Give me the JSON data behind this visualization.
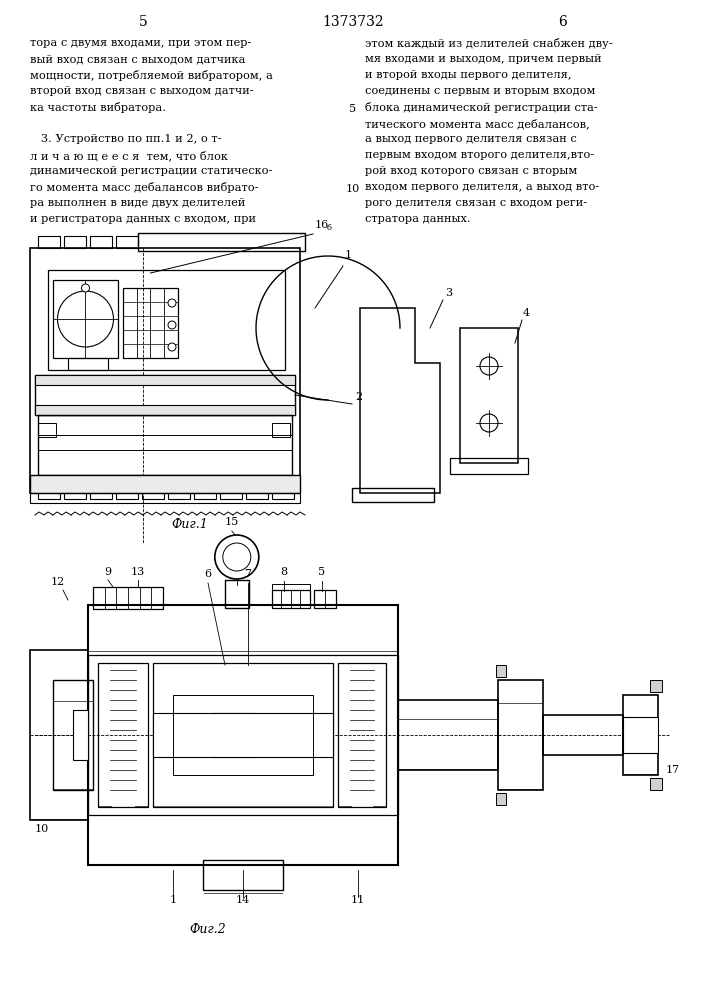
{
  "page_number_left": "5",
  "patent_number": "1373732",
  "page_number_right": "6",
  "background_color": "#ffffff",
  "text_color": "#000000",
  "fig1_label": "Фиг.1",
  "fig2_label": "Фиг.2",
  "left_column_text": [
    "тора с двумя входами, при этом пер-",
    "вый вход связан с выходом датчика",
    "мощности, потребляемой вибратором, а",
    "второй вход связан с выходом датчи-",
    "ка частоты вибратора.",
    "",
    "   3. Устройство по пп.1 и 2, о т-",
    "л и ч а ю щ е е с я  тем, что блок",
    "динамической регистрации статическо-",
    "го момента масс дебалансов вибрато-",
    "ра выполнен в виде двух делителей",
    "и регистратора данных с входом, при"
  ],
  "right_column_text": [
    "этом каждый из делителей снабжен дву-",
    "мя входами и выходом, причем первый",
    "и второй входы первого делителя,",
    "соединены с первым и вторым входом",
    "блока динамической регистрации ста-",
    "тического момента масс дебалансов,",
    "а выход первого делителя связан с",
    "первым входом второго делителя,вто-",
    "рой вход которого связан с вторым",
    "входом первого делителя, а выход вто-",
    "рого делителя связан с входом реги-",
    "стратора данных."
  ],
  "line_number_5": "5",
  "line_number_10": "10"
}
